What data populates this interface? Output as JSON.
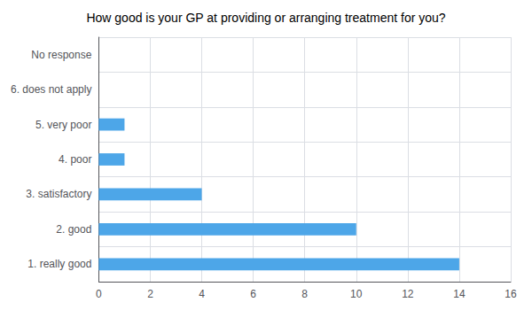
{
  "chart_data": {
    "type": "bar",
    "orientation": "horizontal",
    "title": "How good is your GP at providing or arranging treatment for you?",
    "categories": [
      "1. really good",
      "2. good",
      "3. satisfactory",
      "4. poor",
      "5. very poor",
      "6. does not apply",
      "No response"
    ],
    "values": [
      14,
      10,
      4,
      1,
      1,
      0,
      0
    ],
    "color": "#4da6e8",
    "xlim": [
      0,
      16
    ],
    "xticks": [
      0,
      2,
      4,
      6,
      8,
      10,
      12,
      14,
      16
    ],
    "grid": true
  }
}
